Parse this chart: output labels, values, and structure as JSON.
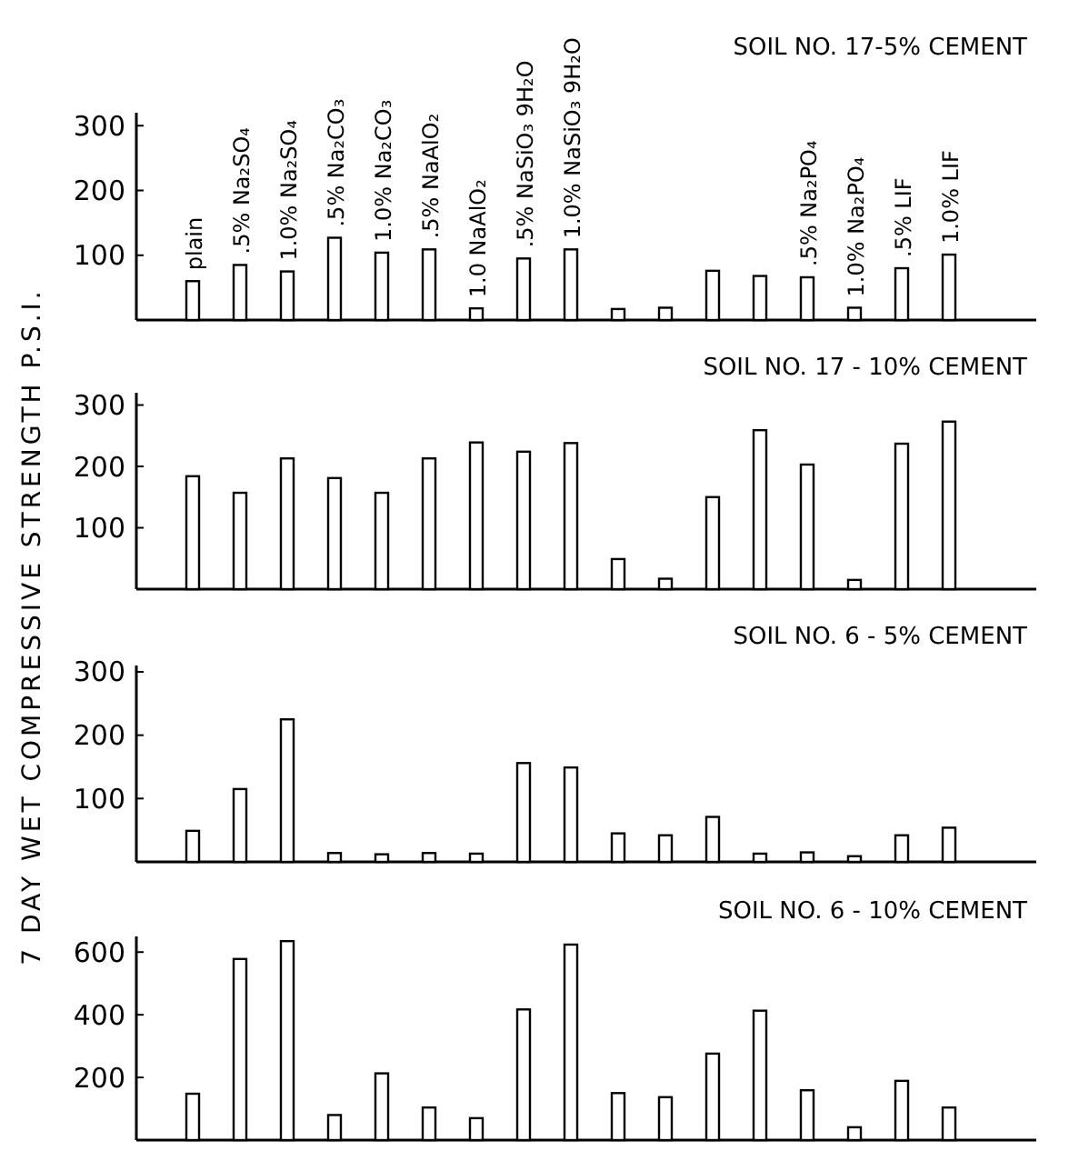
{
  "chart_data": [
    {
      "type": "bar",
      "title": "SOIL NO. 17-5% CEMENT",
      "ylabel": "7 DAY WET COMPRESSIVE STRENGTH P.S.I.",
      "categories": [
        "plain",
        ".5% Na₂SO₄",
        "1.0% Na₂SO₄",
        ".5% Na₂CO₃",
        "1.0% Na₂CO₃",
        ".5% NaAlO₂",
        "1.0 NaAlO₂",
        ".5% NaSiO₃ 9H₂O",
        "1.0% NaSiO₃ 9H₂O",
        null,
        null,
        null,
        null,
        ".5% Na₂PO₄",
        "1.0% Na₂PO₄",
        ".5% LIF",
        "1.0% LIF"
      ],
      "color": "#000000",
      "values": [
        60,
        85,
        75,
        127,
        104,
        109,
        18,
        95,
        109,
        17,
        19,
        76,
        68,
        66,
        19,
        80,
        101
      ],
      "ylim": [
        0,
        320
      ],
      "yticks": [
        100,
        200,
        300
      ]
    },
    {
      "type": "bar",
      "title": "SOIL NO. 17 - 10% CEMENT",
      "color": "#000000",
      "values": [
        184,
        157,
        213,
        181,
        157,
        213,
        239,
        224,
        238,
        49,
        17,
        150,
        259,
        203,
        15,
        237,
        273
      ],
      "ylim": [
        0,
        320
      ],
      "yticks": [
        100,
        200,
        300
      ],
      "tick_labels": "y"
    },
    {
      "type": "bar",
      "title": "SOIL NO. 6 - 5% CEMENT",
      "color": "#000000",
      "values": [
        49,
        115,
        225,
        14,
        12,
        14,
        13,
        156,
        149,
        45,
        42,
        71,
        13,
        15,
        9,
        42,
        54
      ],
      "ylim": [
        0,
        310
      ],
      "yticks": [
        100,
        200,
        300
      ],
      "tick_labels": "y"
    },
    {
      "type": "bar",
      "title": "SOIL NO. 6 - 10% CEMENT",
      "color": "#000000",
      "values": [
        148,
        578,
        635,
        80,
        213,
        104,
        70,
        417,
        624,
        150,
        137,
        276,
        413,
        159,
        41,
        189,
        104
      ],
      "ylim": [
        0,
        650
      ],
      "yticks": [
        200,
        400,
        600
      ],
      "tick_labels": "y"
    }
  ]
}
